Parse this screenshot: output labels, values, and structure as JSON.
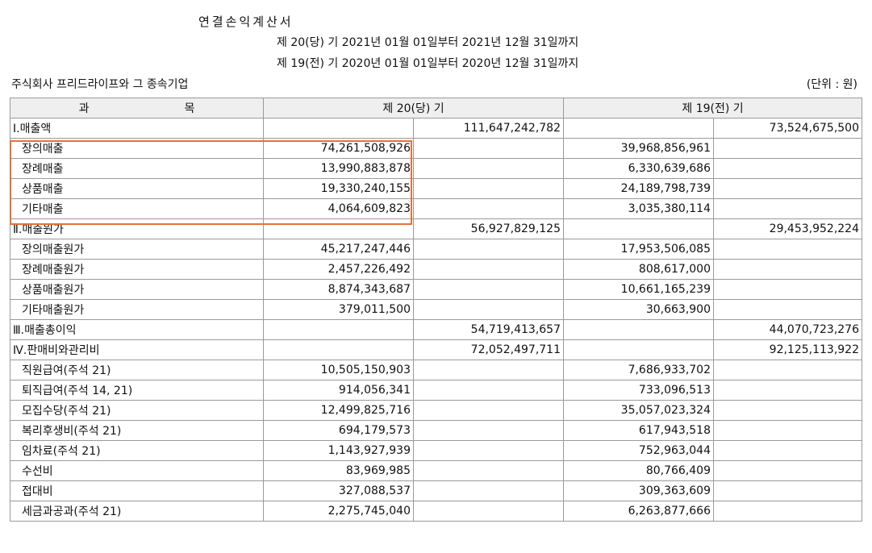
{
  "header": {
    "title": "연결손익계산서",
    "period_current": "제 20(당) 기 2021년 01월 01일부터 2021년 12월 31일까지",
    "period_prior": "제 19(전) 기 2020년 01월 01일부터 2020년 12월 31일까지",
    "company": "주식회사 프리드라이프와 그 종속기업",
    "unit": "(단위 : 원)"
  },
  "table": {
    "col_subject_a": "과",
    "col_subject_b": "목",
    "col_current": "제 20(당) 기",
    "col_prior": "제 19(전) 기",
    "rows": [
      {
        "label": "Ⅰ.매출액",
        "cur_detail": "",
        "cur_total": "111,647,242,782",
        "prior_detail": "",
        "prior_total": "73,524,675,500"
      },
      {
        "label": "장의매출",
        "cur_detail": "74,261,508,926",
        "cur_total": "",
        "prior_detail": "39,968,856,961",
        "prior_total": ""
      },
      {
        "label": "장례매출",
        "cur_detail": "13,990,883,878",
        "cur_total": "",
        "prior_detail": "6,330,639,686",
        "prior_total": ""
      },
      {
        "label": "상품매출",
        "cur_detail": "19,330,240,155",
        "cur_total": "",
        "prior_detail": "24,189,798,739",
        "prior_total": ""
      },
      {
        "label": "기타매출",
        "cur_detail": "4,064,609,823",
        "cur_total": "",
        "prior_detail": "3,035,380,114",
        "prior_total": ""
      },
      {
        "label": "Ⅱ.매출원가",
        "cur_detail": "",
        "cur_total": "56,927,829,125",
        "prior_detail": "",
        "prior_total": "29,453,952,224"
      },
      {
        "label": "장의매출원가",
        "cur_detail": "45,217,247,446",
        "cur_total": "",
        "prior_detail": "17,953,506,085",
        "prior_total": ""
      },
      {
        "label": "장례매출원가",
        "cur_detail": "2,457,226,492",
        "cur_total": "",
        "prior_detail": "808,617,000",
        "prior_total": ""
      },
      {
        "label": "상품매출원가",
        "cur_detail": "8,874,343,687",
        "cur_total": "",
        "prior_detail": "10,661,165,239",
        "prior_total": ""
      },
      {
        "label": "기타매출원가",
        "cur_detail": "379,011,500",
        "cur_total": "",
        "prior_detail": "30,663,900",
        "prior_total": ""
      },
      {
        "label": "Ⅲ.매출총이익",
        "cur_detail": "",
        "cur_total": "54,719,413,657",
        "prior_detail": "",
        "prior_total": "44,070,723,276"
      },
      {
        "label": "Ⅳ.판매비와관리비",
        "cur_detail": "",
        "cur_total": "72,052,497,711",
        "prior_detail": "",
        "prior_total": "92,125,113,922"
      },
      {
        "label": "직원급여(주석 21)",
        "cur_detail": "10,505,150,903",
        "cur_total": "",
        "prior_detail": "7,686,933,702",
        "prior_total": ""
      },
      {
        "label": "퇴직급여(주석 14, 21)",
        "cur_detail": "914,056,341",
        "cur_total": "",
        "prior_detail": "733,096,513",
        "prior_total": ""
      },
      {
        "label": "모집수당(주석 21)",
        "cur_detail": "12,499,825,716",
        "cur_total": "",
        "prior_detail": "35,057,023,324",
        "prior_total": ""
      },
      {
        "label": "복리후생비(주석 21)",
        "cur_detail": "694,179,573",
        "cur_total": "",
        "prior_detail": "617,943,518",
        "prior_total": ""
      },
      {
        "label": "임차료(주석 21)",
        "cur_detail": "1,143,927,939",
        "cur_total": "",
        "prior_detail": "752,963,044",
        "prior_total": ""
      },
      {
        "label": "수선비",
        "cur_detail": "83,969,985",
        "cur_total": "",
        "prior_detail": "80,766,409",
        "prior_total": ""
      },
      {
        "label": "접대비",
        "cur_detail": "327,088,537",
        "cur_total": "",
        "prior_detail": "309,363,609",
        "prior_total": ""
      },
      {
        "label": "세금과공과(주석 21)",
        "cur_detail": "2,275,745,040",
        "cur_total": "",
        "prior_detail": "6,263,877,666",
        "prior_total": ""
      }
    ]
  }
}
